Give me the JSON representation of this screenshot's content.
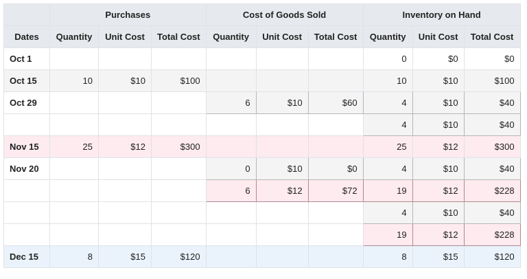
{
  "table": {
    "groups": [
      null,
      "Purchases",
      "Cost of Goods Sold",
      "Inventory on Hand"
    ],
    "columns": [
      "Dates",
      "Quantity",
      "Unit Cost",
      "Total Cost",
      "Quantity",
      "Unit Cost",
      "Total Cost",
      "Quantity",
      "Unit Cost",
      "Total Cost"
    ],
    "rows": [
      [
        "Oct 1",
        null,
        null,
        null,
        null,
        null,
        null,
        "0",
        "$0",
        "$0"
      ],
      [
        "Oct 15",
        "10",
        "$10",
        "$100",
        null,
        null,
        null,
        "10",
        "$10",
        "$100"
      ],
      [
        "Oct 29",
        null,
        null,
        null,
        "6",
        "$10",
        "$60",
        "4",
        "$10",
        "$40"
      ],
      [
        null,
        null,
        null,
        null,
        null,
        null,
        null,
        "4",
        "$10",
        "$40"
      ],
      [
        "Nov 15",
        "25",
        "$12",
        "$300",
        null,
        null,
        null,
        "25",
        "$12",
        "$300"
      ],
      [
        "Nov 20",
        null,
        null,
        null,
        "0",
        "$10",
        "$0",
        "4",
        "$10",
        "$40"
      ],
      [
        null,
        null,
        null,
        null,
        "6",
        "$12",
        "$72",
        "19",
        "$12",
        "$228"
      ],
      [
        null,
        null,
        null,
        null,
        null,
        null,
        null,
        "4",
        "$10",
        "$40"
      ],
      [
        null,
        null,
        null,
        null,
        null,
        null,
        null,
        "19",
        "$12",
        "$228"
      ],
      [
        "Dec 15",
        "8",
        "$15",
        "$120",
        null,
        null,
        null,
        "8",
        "$15",
        "$120"
      ]
    ]
  }
}
